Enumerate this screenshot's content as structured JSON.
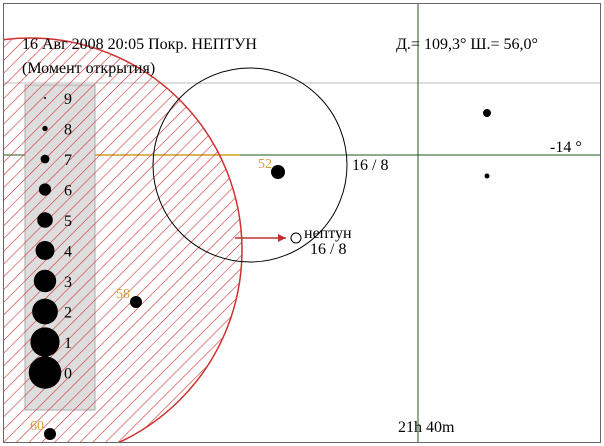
{
  "header": {
    "title": "16 Авг 2008 20:05 Покр. НЕПТУН",
    "coords": "Д.= 109,3°  Ш.= 56,0°",
    "subtitle": "(Момент открытия)"
  },
  "legend": {
    "labels": [
      "9",
      "8",
      "7",
      "6",
      "5",
      "4",
      "3",
      "2",
      "1",
      "0"
    ]
  },
  "map": {
    "star_labels": [
      "52",
      "58",
      "60"
    ],
    "circle_date": "16 / 8",
    "planet_name": "нептун",
    "planet_date": "16 / 8",
    "declination": "-14 °",
    "right_ascension": "21h 40m"
  }
}
